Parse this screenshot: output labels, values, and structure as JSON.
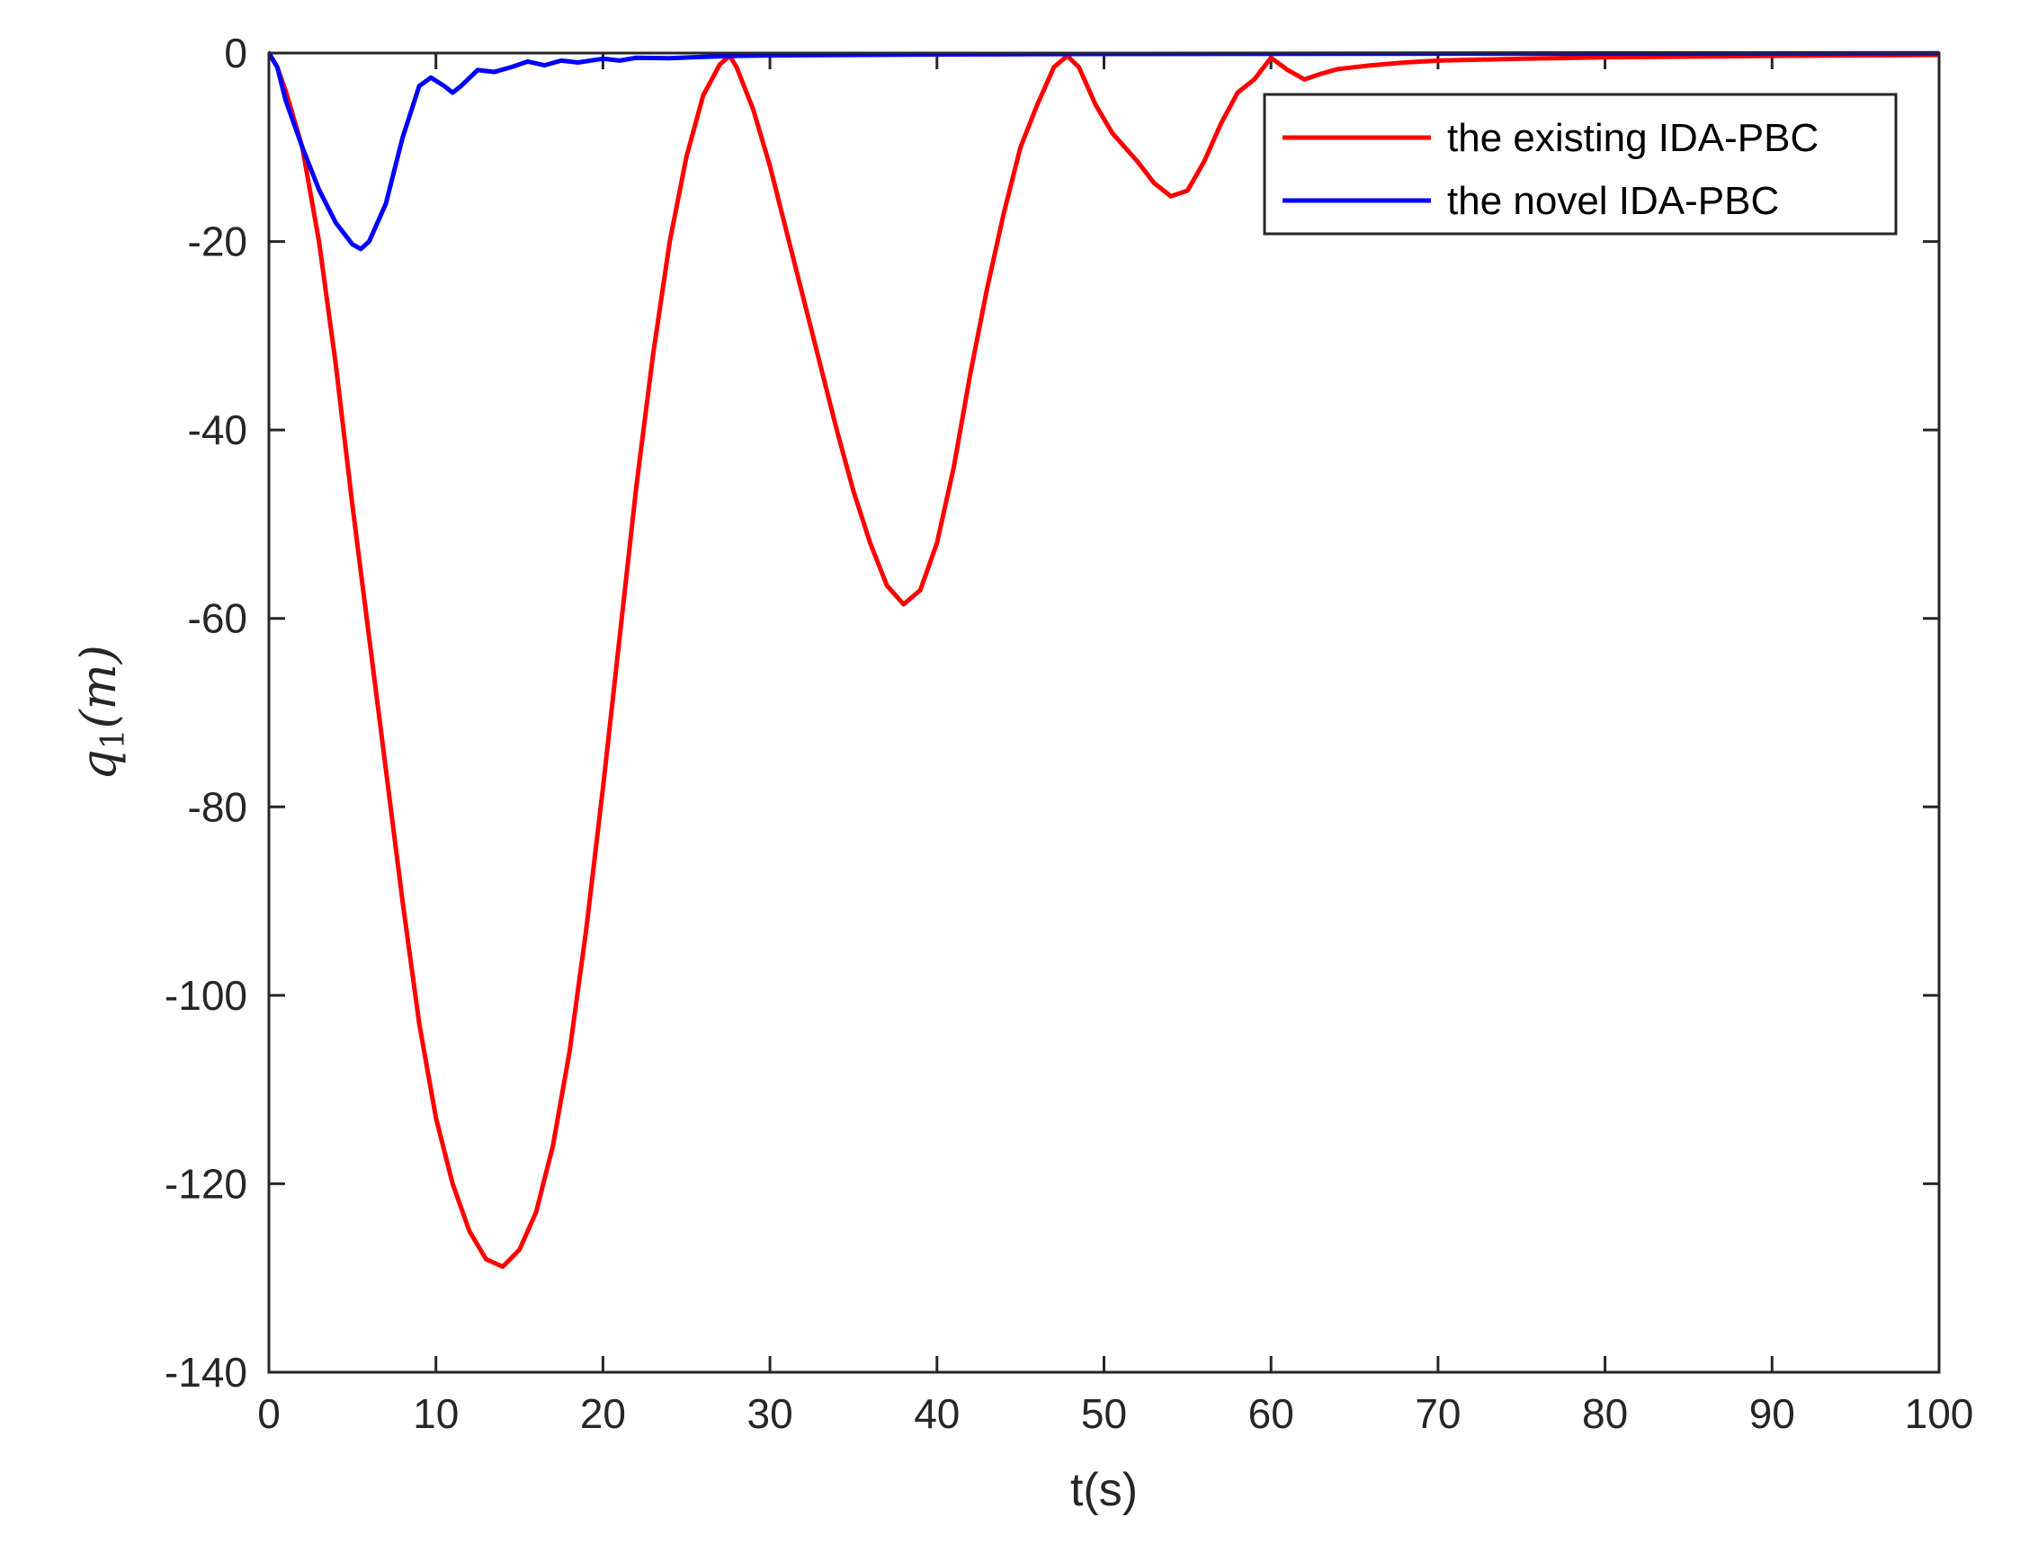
{
  "chart_data": {
    "type": "line",
    "title": "",
    "xlabel": "t(s)",
    "ylabel": {
      "var": "q",
      "sub": "1",
      "rest": "(m)"
    },
    "xlim": [
      0,
      100
    ],
    "ylim": [
      -140,
      0
    ],
    "xticks": [
      0,
      10,
      20,
      30,
      40,
      50,
      60,
      70,
      80,
      90,
      100
    ],
    "yticks": [
      0,
      -20,
      -40,
      -60,
      -80,
      -100,
      -120,
      -140
    ],
    "grid": false,
    "legend_position": "top-right",
    "series": [
      {
        "name": "the existing IDA-PBC",
        "color": "#ff0000",
        "points": [
          [
            0,
            0
          ],
          [
            0.5,
            -1.5
          ],
          [
            1,
            -4
          ],
          [
            2,
            -10
          ],
          [
            3,
            -20
          ],
          [
            4,
            -33
          ],
          [
            5,
            -48
          ],
          [
            6,
            -62
          ],
          [
            7,
            -76
          ],
          [
            8,
            -90
          ],
          [
            9,
            -103
          ],
          [
            10,
            -113
          ],
          [
            11,
            -120
          ],
          [
            12,
            -125
          ],
          [
            13,
            -128
          ],
          [
            14,
            -128.8
          ],
          [
            15,
            -127
          ],
          [
            16,
            -123
          ],
          [
            17,
            -116
          ],
          [
            18,
            -106
          ],
          [
            19,
            -93
          ],
          [
            20,
            -78
          ],
          [
            21,
            -62
          ],
          [
            22,
            -46
          ],
          [
            23,
            -32
          ],
          [
            24,
            -20
          ],
          [
            25,
            -11
          ],
          [
            26,
            -4.5
          ],
          [
            27,
            -1.2
          ],
          [
            27.6,
            -0.3
          ],
          [
            28,
            -1.5
          ],
          [
            29,
            -6
          ],
          [
            30,
            -12
          ],
          [
            31,
            -19
          ],
          [
            32,
            -26
          ],
          [
            33,
            -33
          ],
          [
            34,
            -40
          ],
          [
            35,
            -46.5
          ],
          [
            36,
            -52
          ],
          [
            37,
            -56.5
          ],
          [
            38,
            -58.5
          ],
          [
            39,
            -57
          ],
          [
            40,
            -52
          ],
          [
            41,
            -44
          ],
          [
            42,
            -34
          ],
          [
            43,
            -25
          ],
          [
            44,
            -17
          ],
          [
            45,
            -10
          ],
          [
            46,
            -5.5
          ],
          [
            47,
            -1.5
          ],
          [
            47.8,
            -0.3
          ],
          [
            48.5,
            -1.5
          ],
          [
            49.5,
            -5.5
          ],
          [
            50.5,
            -8.5
          ],
          [
            52,
            -11.5
          ],
          [
            53,
            -13.8
          ],
          [
            54,
            -15.2
          ],
          [
            55,
            -14.6
          ],
          [
            56,
            -11.5
          ],
          [
            57,
            -7.5
          ],
          [
            58,
            -4.2
          ],
          [
            59,
            -2.8
          ],
          [
            60,
            -0.5
          ],
          [
            61,
            -1.8
          ],
          [
            62,
            -2.8
          ],
          [
            63,
            -2.2
          ],
          [
            64,
            -1.7
          ],
          [
            66,
            -1.3
          ],
          [
            68,
            -1.0
          ],
          [
            70,
            -0.8
          ],
          [
            75,
            -0.6
          ],
          [
            80,
            -0.45
          ],
          [
            90,
            -0.3
          ],
          [
            100,
            -0.2
          ]
        ]
      },
      {
        "name": "the novel IDA-PBC",
        "color": "#0000ff",
        "points": [
          [
            0,
            0
          ],
          [
            0.5,
            -1.5
          ],
          [
            1,
            -5
          ],
          [
            2,
            -10
          ],
          [
            3,
            -14.5
          ],
          [
            4,
            -18
          ],
          [
            5,
            -20.3
          ],
          [
            5.5,
            -20.8
          ],
          [
            6,
            -20
          ],
          [
            7,
            -16
          ],
          [
            8,
            -9
          ],
          [
            9,
            -3.5
          ],
          [
            9.7,
            -2.6
          ],
          [
            10.5,
            -3.5
          ],
          [
            11,
            -4.2
          ],
          [
            11.5,
            -3.5
          ],
          [
            12.5,
            -1.8
          ],
          [
            13.5,
            -2.0
          ],
          [
            14.5,
            -1.5
          ],
          [
            15.5,
            -0.9
          ],
          [
            16.5,
            -1.3
          ],
          [
            17.5,
            -0.8
          ],
          [
            18.5,
            -1.0
          ],
          [
            20,
            -0.6
          ],
          [
            21,
            -0.8
          ],
          [
            22,
            -0.5
          ],
          [
            24,
            -0.55
          ],
          [
            26,
            -0.4
          ],
          [
            28,
            -0.3
          ],
          [
            30,
            -0.25
          ],
          [
            40,
            -0.15
          ],
          [
            50,
            -0.1
          ],
          [
            60,
            -0.08
          ],
          [
            80,
            -0.05
          ],
          [
            100,
            -0.03
          ]
        ]
      }
    ]
  }
}
